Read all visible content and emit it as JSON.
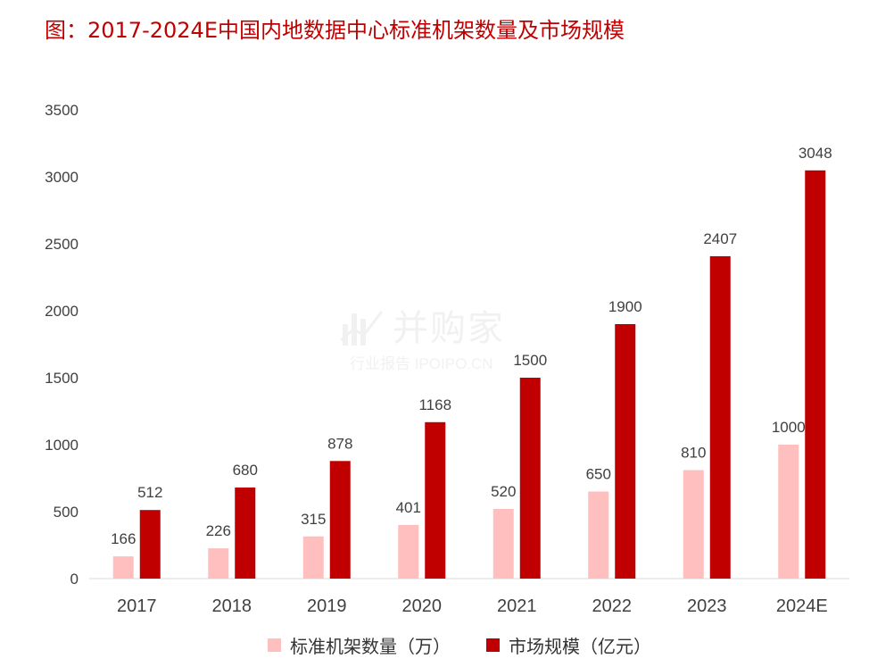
{
  "title": "图：2017-2024E中国内地数据中心标准机架数量及市场规模",
  "watermark": {
    "main": "并购家",
    "sub": "行业报告 IPOIPO.CN"
  },
  "colors": {
    "series1": "#ffbfbf",
    "series2": "#c00000",
    "title": "#c00000"
  },
  "chart_data": {
    "type": "bar",
    "categories": [
      "2017",
      "2018",
      "2019",
      "2020",
      "2021",
      "2022",
      "2023",
      "2024E"
    ],
    "series": [
      {
        "name": "标准机架数量（万）",
        "values": [
          166,
          226,
          315,
          401,
          520,
          650,
          810,
          1000
        ]
      },
      {
        "name": "市场规模（亿元）",
        "values": [
          512,
          680,
          878,
          1168,
          1500,
          1900,
          2407,
          3048
        ]
      }
    ],
    "yticks": [
      "0",
      "500",
      "1000",
      "1500",
      "2000",
      "2500",
      "3000",
      "3500"
    ],
    "ylim": [
      0,
      3500
    ],
    "grid": false,
    "legend": "bottom"
  }
}
